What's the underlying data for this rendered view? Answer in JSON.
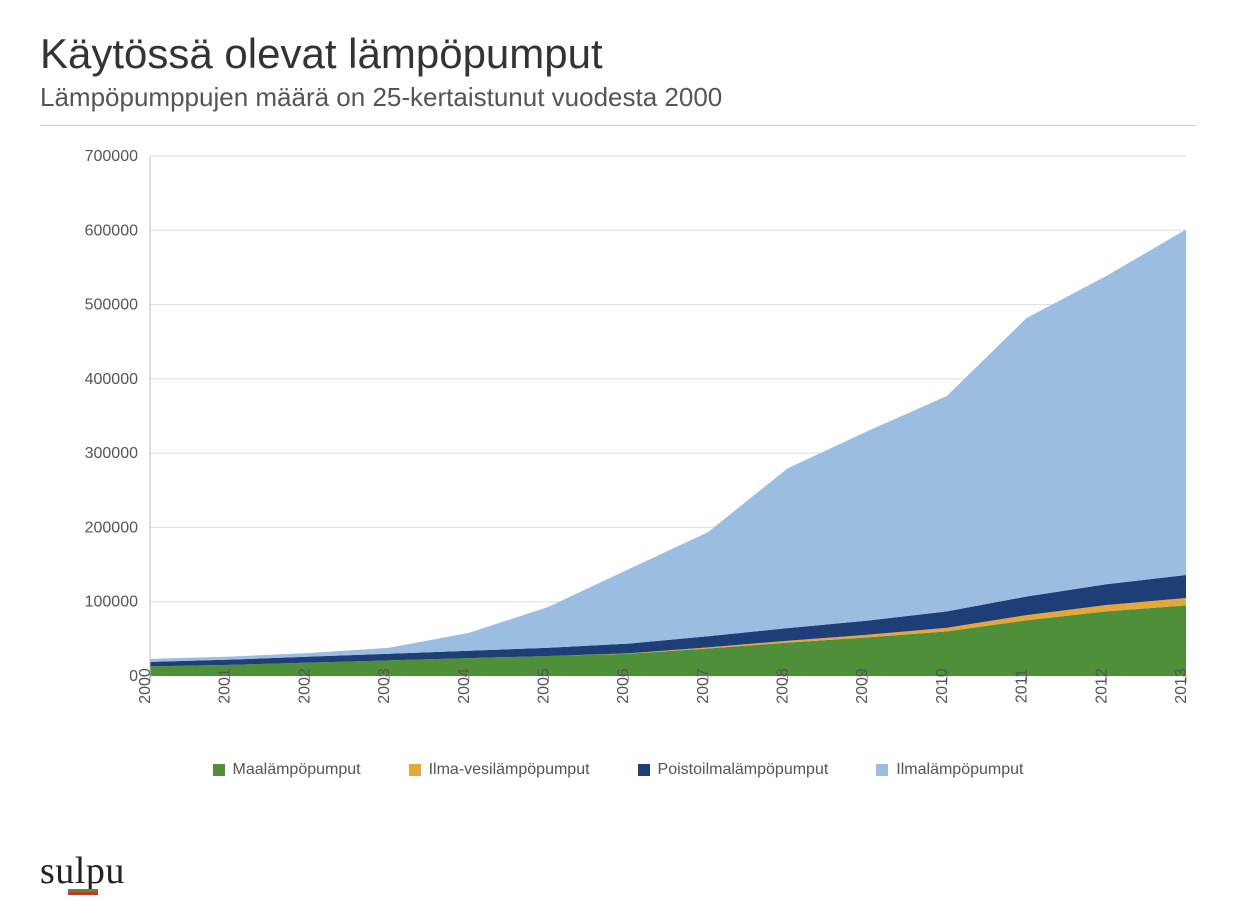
{
  "title": "Käytössä olevat lämpöpumput",
  "subtitle": "Lämpöpumppujen määrä on 25-kertaistunut vuodesta 2000",
  "chart": {
    "type": "stacked-area",
    "years": [
      2000,
      2001,
      2002,
      2003,
      2004,
      2005,
      2006,
      2007,
      2008,
      2009,
      2010,
      2011,
      2012,
      2013
    ],
    "ylim": [
      0,
      700000
    ],
    "ytick_step": 100000,
    "yticks": [
      "0",
      "100000",
      "200000",
      "300000",
      "400000",
      "500000",
      "600000",
      "700000"
    ],
    "grid_color": "#dddddd",
    "axis_color": "#bbbbbb",
    "tick_color": "#888888",
    "background_color": "#ffffff",
    "label_fontsize": 16,
    "series": [
      {
        "key": "maalampopumput",
        "label": "Maalämpöpumput",
        "color": "#4f8f3a",
        "values": [
          13000,
          15000,
          18000,
          21000,
          24000,
          27000,
          30000,
          37000,
          45000,
          52000,
          60000,
          75000,
          87000,
          95000
        ]
      },
      {
        "key": "ilma_vesi",
        "label": "Ilma-vesilämpöpumput",
        "color": "#e6a738",
        "values": [
          0,
          0,
          0,
          0,
          0,
          0,
          500,
          1500,
          2500,
          3500,
          5000,
          7000,
          8500,
          10000
        ]
      },
      {
        "key": "poistoilma",
        "label": "Poistoilmalämpöpumput",
        "color": "#1e3e78",
        "values": [
          6000,
          7000,
          8000,
          9000,
          10000,
          11000,
          13000,
          15000,
          17000,
          19000,
          22000,
          25000,
          28000,
          31000
        ]
      },
      {
        "key": "ilmalampopumput",
        "label": "Ilmalämpöpumput",
        "color": "#9bbde2",
        "values": [
          4000,
          4000,
          5000,
          8000,
          24000,
          55000,
          100000,
          140000,
          215000,
          255000,
          290000,
          375000,
          415000,
          465000
        ]
      }
    ]
  },
  "legend": {
    "items": [
      {
        "label": "Maalämpöpumput",
        "color": "#4f8f3a"
      },
      {
        "label": "Ilma-vesilämpöpumput",
        "color": "#e6a738"
      },
      {
        "label": "Poistoilmalämpöpumput",
        "color": "#1e3e78"
      },
      {
        "label": "Ilmalämpöpumput",
        "color": "#9bbde2"
      }
    ]
  },
  "logo": {
    "text": "sulpu",
    "bar_colors": [
      "#4f8f3a",
      "#c0392b"
    ]
  }
}
